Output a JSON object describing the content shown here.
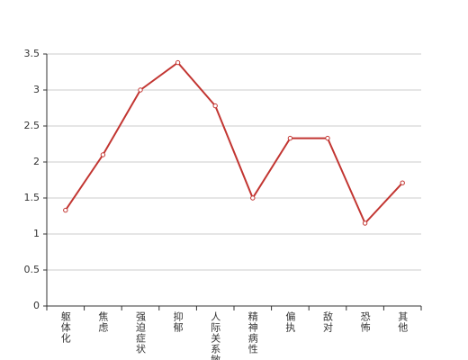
{
  "chart_data": {
    "type": "line",
    "categories": [
      "躯体化",
      "焦虑",
      "强迫症状",
      "抑郁",
      "人际关系敏感",
      "精神病性",
      "偏执",
      "敌对",
      "恐怖",
      "其他"
    ],
    "values": [
      1.33,
      2.1,
      3.0,
      3.38,
      2.78,
      1.5,
      2.33,
      2.33,
      1.15,
      1.71
    ],
    "color": "#c23531",
    "ylim": [
      0,
      3.5
    ],
    "yticks": [
      0,
      0.5,
      1,
      1.5,
      2,
      2.5,
      3,
      3.5
    ],
    "grid": true
  }
}
